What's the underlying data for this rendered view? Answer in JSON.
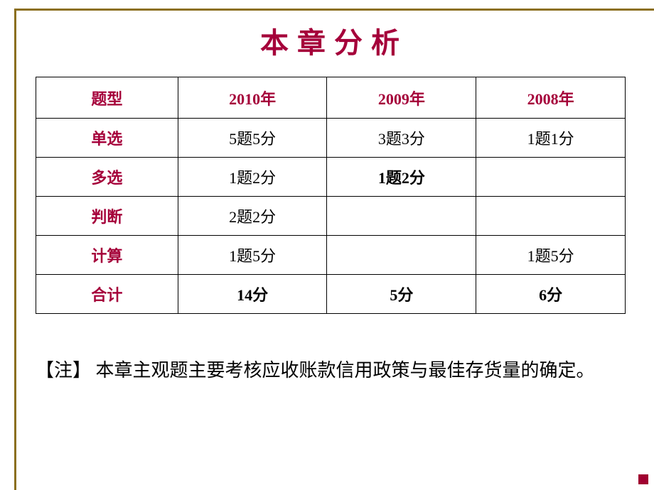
{
  "title": "本章分析",
  "columns": [
    "题型",
    "2010年",
    "2009年",
    "2008年"
  ],
  "rows": [
    {
      "label": "单选",
      "cells": [
        "5题5分",
        "3题3分",
        "1题1分"
      ],
      "bold": [
        false,
        false,
        false
      ]
    },
    {
      "label": "多选",
      "cells": [
        "1题2分",
        "1题2分",
        ""
      ],
      "bold": [
        false,
        true,
        false
      ]
    },
    {
      "label": "判断",
      "cells": [
        "2题2分",
        "",
        ""
      ],
      "bold": [
        false,
        false,
        false
      ]
    },
    {
      "label": "计算",
      "cells": [
        "1题5分",
        "",
        "1题5分"
      ],
      "bold": [
        false,
        false,
        false
      ]
    },
    {
      "label": "合计",
      "cells": [
        "14分",
        "5分",
        "6分"
      ],
      "bold": [
        true,
        true,
        true
      ]
    }
  ],
  "note": "【注】 本章主观题主要考核应收账款信用政策与最佳存货量的确定。",
  "colors": {
    "accent": "#a5003a",
    "frame": "#8b6f1f",
    "text": "#000000",
    "bg": "#ffffff"
  }
}
